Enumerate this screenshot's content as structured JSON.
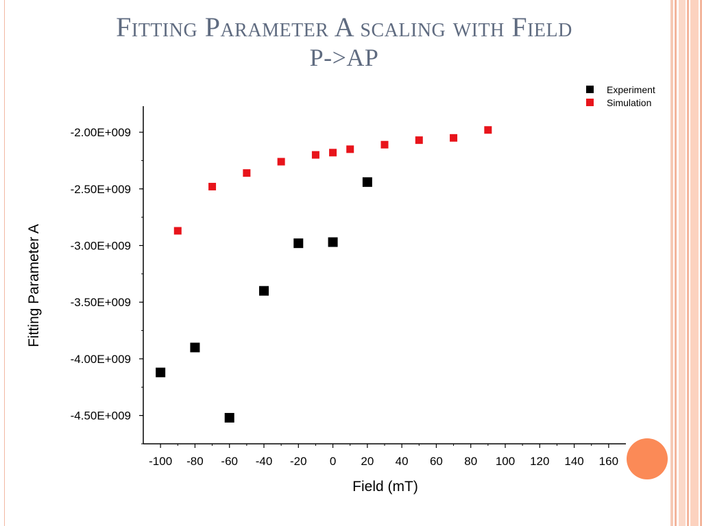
{
  "slide": {
    "title_line1": "Fitting Parameter A scaling with Field",
    "title_line2": "P->AP",
    "accent_color": "#fb8a57",
    "title_color": "#5f6b80"
  },
  "chart_data": {
    "type": "scatter",
    "xlabel": "Field (mT)",
    "ylabel": "Fitting Parameter A",
    "xlim": [
      -110,
      170
    ],
    "ylim": [
      -4750000000.0,
      -1770000000.0
    ],
    "x_ticks": [
      -100,
      -80,
      -60,
      -40,
      -20,
      0,
      20,
      40,
      60,
      80,
      100,
      120,
      140,
      160
    ],
    "x_tick_labels": [
      "-100",
      "-80",
      "-60",
      "-40",
      "-20",
      "0",
      "20",
      "40",
      "60",
      "80",
      "100",
      "120",
      "140",
      "160"
    ],
    "y_ticks": [
      -2000000000.0,
      -2500000000.0,
      -3000000000.0,
      -3500000000.0,
      -4000000000.0,
      -4500000000.0
    ],
    "y_tick_labels": [
      "-2.00E+009",
      "-2.50E+009",
      "-3.00E+009",
      "-3.50E+009",
      "-4.00E+009",
      "-4.50E+009"
    ],
    "legend_position": "top-right",
    "series": [
      {
        "name": "Experiment",
        "color": "#000000",
        "marker": "square",
        "x": [
          -100,
          -80,
          -60,
          -40,
          -20,
          0,
          20
        ],
        "y": [
          -4120000000.0,
          -3900000000.0,
          -4520000000.0,
          -3400000000.0,
          -2980000000.0,
          -2970000000.0,
          -2440000000.0
        ]
      },
      {
        "name": "Simulation",
        "color": "#e8141b",
        "marker": "square",
        "x": [
          -90,
          -70,
          -50,
          -30,
          -10,
          0,
          10,
          30,
          50,
          70,
          90
        ],
        "y": [
          -2870000000.0,
          -2480000000.0,
          -2360000000.0,
          -2260000000.0,
          -2200000000.0,
          -2180000000.0,
          -2150000000.0,
          -2110000000.0,
          -2070000000.0,
          -2050000000.0,
          -1980000000.0
        ]
      }
    ]
  }
}
